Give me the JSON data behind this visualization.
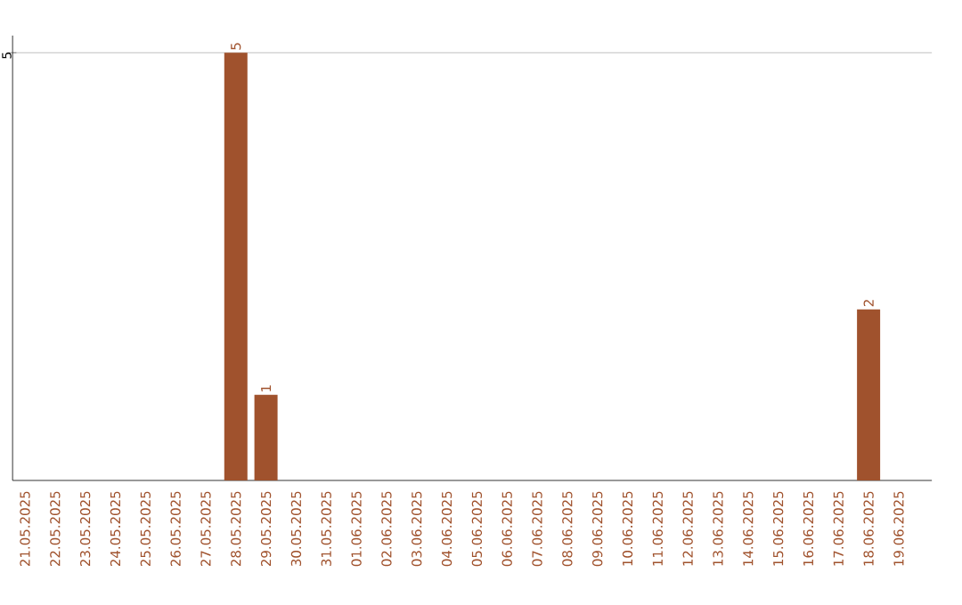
{
  "chart_data": {
    "type": "bar",
    "categories": [
      "21.05.2025",
      "22.05.2025",
      "23.05.2025",
      "24.05.2025",
      "25.05.2025",
      "26.05.2025",
      "27.05.2025",
      "28.05.2025",
      "29.05.2025",
      "30.05.2025",
      "31.05.2025",
      "01.06.2025",
      "02.06.2025",
      "03.06.2025",
      "04.06.2025",
      "05.06.2025",
      "06.06.2025",
      "07.06.2025",
      "08.06.2025",
      "09.06.2025",
      "10.06.2025",
      "11.06.2025",
      "12.06.2025",
      "13.06.2025",
      "14.06.2025",
      "15.06.2025",
      "16.06.2025",
      "17.06.2025",
      "18.06.2025",
      "19.06.2025"
    ],
    "values": [
      0,
      0,
      0,
      0,
      0,
      0,
      0,
      5,
      1,
      0,
      0,
      0,
      0,
      0,
      0,
      0,
      0,
      0,
      0,
      0,
      0,
      0,
      0,
      0,
      0,
      0,
      0,
      0,
      2,
      0
    ],
    "value_labels": [
      null,
      null,
      null,
      null,
      null,
      null,
      null,
      "5",
      "1",
      null,
      null,
      null,
      null,
      null,
      null,
      null,
      null,
      null,
      null,
      null,
      null,
      null,
      null,
      null,
      null,
      null,
      null,
      null,
      "2",
      null
    ],
    "color": "#a0522d",
    "ylim": [
      0,
      5.2
    ],
    "yticks": [
      5
    ],
    "grid": "y"
  }
}
